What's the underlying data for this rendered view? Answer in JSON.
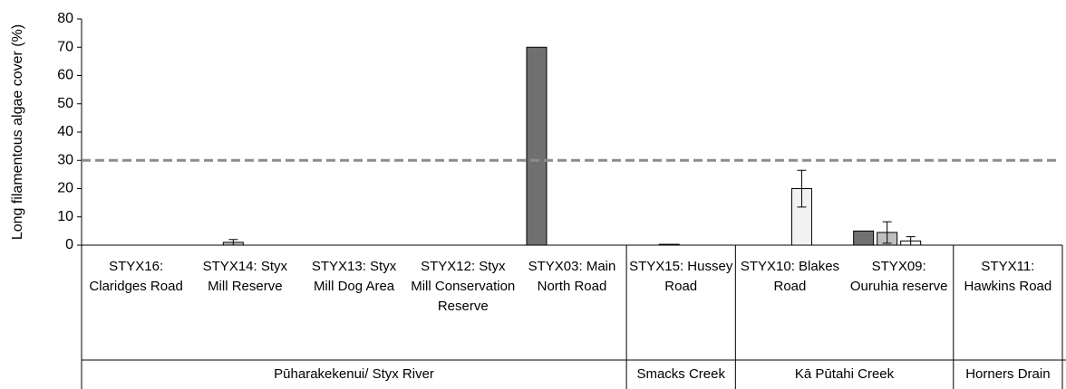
{
  "chart_data": {
    "type": "bar",
    "ylabel": "Long filamentous algae cover (%)",
    "categories": [
      "STYX16: Claridges Road",
      "STYX14: Styx Mill Reserve",
      "STYX13: Styx Mill Dog Area",
      "STYX12: Styx Mill Conservation Reserve",
      "STYX03: Main North Road",
      "STYX15: Hussey Road",
      "STYX10: Blakes Road",
      "STYX09: Ouruhia reserve",
      "STYX11: Hawkins Road"
    ],
    "groups": [
      {
        "label": "Pūharakekenui/ Styx River",
        "span": 5
      },
      {
        "label": "Smacks Creek",
        "span": 1
      },
      {
        "label": "Kā Pūtahi Creek",
        "span": 2
      },
      {
        "label": "Horners Drain",
        "span": 1
      }
    ],
    "series": [
      {
        "color": "#707070",
        "values": [
          0,
          0,
          0,
          0,
          70,
          0,
          0,
          5,
          0
        ],
        "errors": [
          null,
          null,
          null,
          null,
          null,
          null,
          null,
          null,
          null
        ]
      },
      {
        "color": "#bfbfbf",
        "values": [
          0,
          1,
          0,
          0,
          0,
          0.3,
          0,
          4.5,
          0
        ],
        "errors": [
          null,
          1,
          null,
          null,
          null,
          null,
          null,
          3.8,
          null
        ]
      },
      {
        "color": "#f2f2f2",
        "values": [
          0,
          0,
          0,
          0,
          0,
          0,
          20,
          1.5,
          0
        ],
        "errors": [
          null,
          null,
          null,
          null,
          null,
          null,
          6.5,
          1.5,
          null
        ]
      },
      {
        "color": "#ffffff",
        "values": [
          0,
          0,
          0,
          0,
          0,
          0,
          0,
          0,
          0
        ],
        "errors": [
          null,
          null,
          null,
          null,
          null,
          null,
          null,
          null,
          null
        ]
      }
    ],
    "guideline": 30,
    "guideline_color": "#8c8c8c",
    "ylim": [
      0,
      80
    ],
    "yticks": [
      0,
      10,
      20,
      30,
      40,
      50,
      60,
      70,
      80
    ]
  }
}
